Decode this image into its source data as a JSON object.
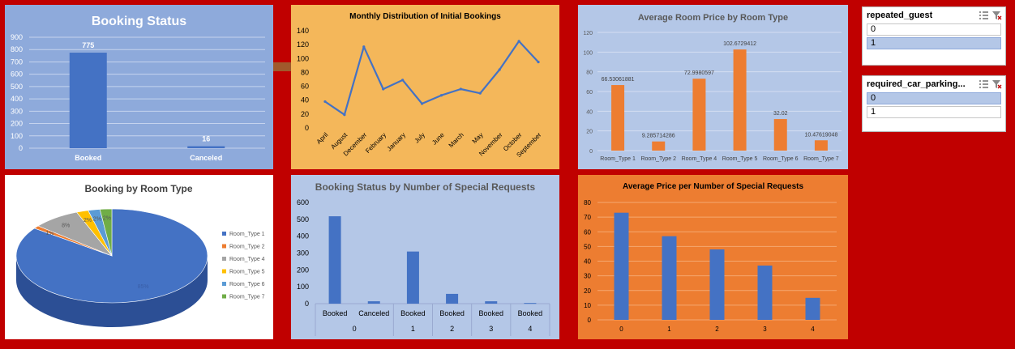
{
  "chart_data": [
    {
      "id": "booking_status",
      "type": "bar",
      "title": "Booking Status",
      "categories": [
        "Booked",
        "Canceled"
      ],
      "values": [
        775,
        16
      ],
      "ylim": [
        0,
        900
      ],
      "yticks": [
        0,
        100,
        200,
        300,
        400,
        500,
        600,
        700,
        800,
        900
      ],
      "grid": true,
      "legend": "none",
      "colors": {
        "bar": "#4472c4",
        "background": "#8eaadb",
        "text": "#ffffff"
      }
    },
    {
      "id": "monthly_bookings",
      "type": "line",
      "title": "Monthly Distribution of Initial Bookings",
      "categories": [
        "April",
        "August",
        "December",
        "February",
        "January",
        "July",
        "June",
        "March",
        "May",
        "November",
        "October",
        "September"
      ],
      "values": [
        38,
        19,
        117,
        56,
        69,
        35,
        47,
        56,
        50,
        84,
        125,
        95
      ],
      "ylim": [
        0,
        140
      ],
      "yticks": [
        0,
        20,
        40,
        60,
        80,
        100,
        120,
        140
      ],
      "grid": false,
      "legend": "none",
      "colors": {
        "line": "#4472c4",
        "background": "#f4b75a",
        "text": "#000000"
      }
    },
    {
      "id": "avg_room_price",
      "type": "bar",
      "title": "Average Room Price by Room Type",
      "categories": [
        "Room_Type 1",
        "Room_Type 2",
        "Room_Type 4",
        "Room_Type 5",
        "Room_Type 6",
        "Room_Type 7"
      ],
      "values": [
        66.53061881,
        9.285714286,
        72.9980597,
        102.6729412,
        32.02,
        10.47619048
      ],
      "labels": [
        "66.53061881",
        "9.285714286",
        "72.9980597",
        "102.6729412",
        "32.02",
        "10.47619048"
      ],
      "ylim": [
        0,
        120
      ],
      "yticks": [
        0,
        20,
        40,
        60,
        80,
        100,
        120
      ],
      "grid": true,
      "legend": "none",
      "colors": {
        "bar": "#ed7d31",
        "background": "#b4c7e7",
        "text": "#595959"
      }
    },
    {
      "id": "booking_by_room_type",
      "type": "pie",
      "title": "Booking by Room Type",
      "categories": [
        "Room_Type 1",
        "Room_Type 2",
        "Room_Type 4",
        "Room_Type 5",
        "Room_Type 6",
        "Room_Type 7"
      ],
      "values": [
        85,
        1,
        8,
        2,
        2,
        2
      ],
      "labels": [
        "85%",
        "1%",
        "8%",
        "2%",
        "2%",
        "2%"
      ],
      "legend": "right",
      "colors": {
        "slices": [
          "#4472c4",
          "#ed7d31",
          "#a5a5a5",
          "#ffc000",
          "#5b9bd5",
          "#70ad47"
        ],
        "background": "#ffffff",
        "text": "#595959"
      }
    },
    {
      "id": "status_by_special_requests",
      "type": "bar",
      "title": "Booking Status by Number of Special Requests",
      "groups": [
        {
          "name": "0",
          "items": [
            {
              "label": "Booked",
              "value": 518
            },
            {
              "label": "Canceled",
              "value": 14
            }
          ]
        },
        {
          "name": "1",
          "items": [
            {
              "label": "Booked",
              "value": 309
            }
          ]
        },
        {
          "name": "2",
          "items": [
            {
              "label": "Booked",
              "value": 58
            }
          ]
        },
        {
          "name": "3",
          "items": [
            {
              "label": "Booked",
              "value": 14
            }
          ]
        },
        {
          "name": "4",
          "items": [
            {
              "label": "Booked",
              "value": 4
            }
          ]
        }
      ],
      "ylim": [
        0,
        600
      ],
      "yticks": [
        0,
        100,
        200,
        300,
        400,
        500,
        600
      ],
      "grid": false,
      "legend": "none",
      "colors": {
        "bar": "#4472c4",
        "background": "#b4c7e7",
        "text": "#000000"
      }
    },
    {
      "id": "avg_price_special_requests",
      "type": "bar",
      "title": "Average Price per Number of Special Requests",
      "categories": [
        "0",
        "1",
        "2",
        "3",
        "4"
      ],
      "values": [
        73,
        57,
        48,
        37,
        15
      ],
      "ylim": [
        0,
        80
      ],
      "yticks": [
        0,
        10,
        20,
        30,
        40,
        50,
        60,
        70,
        80
      ],
      "grid": true,
      "legend": "none",
      "colors": {
        "bar": "#4472c4",
        "background": "#ed7d31",
        "text": "#000000"
      }
    }
  ],
  "slicers": [
    {
      "title": "repeated_guest",
      "items": [
        {
          "label": "0",
          "selected": false
        },
        {
          "label": "1",
          "selected": true
        }
      ]
    },
    {
      "title": "required_car_parking...",
      "items": [
        {
          "label": "0",
          "selected": true
        },
        {
          "label": "1",
          "selected": false
        }
      ]
    }
  ],
  "colors": {
    "dashboard_background": "#c00000"
  }
}
